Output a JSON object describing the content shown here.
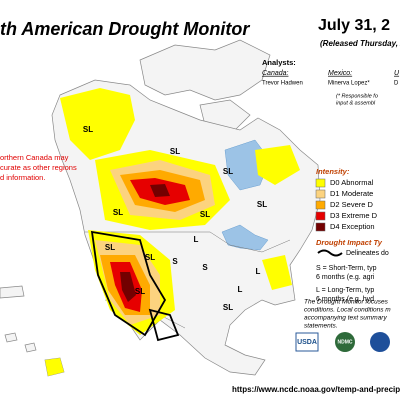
{
  "header": {
    "title": "th American Drought Monitor",
    "date": "July 31, 2",
    "released": "(Released Thursday, A"
  },
  "analysts": {
    "heading": "Analysts:",
    "entries": [
      {
        "region": "Canada:",
        "name": "Trevor Hadwen"
      },
      {
        "region": "Mexico:",
        "name": "Minerva Lopez*"
      },
      {
        "region": "U",
        "name": "D"
      }
    ],
    "note": [
      "(* Responsible fo",
      "input & assembl"
    ]
  },
  "warning": [
    "orthern Canada may",
    "curate as other regions",
    "d information."
  ],
  "legend": {
    "heading": "Intensity:",
    "items": [
      {
        "label": "D0 Abnormal",
        "color": "#ffff00"
      },
      {
        "label": "D1 Moderate",
        "color": "#fcd37f"
      },
      {
        "label": "D2 Severe D",
        "color": "#ffaa00"
      },
      {
        "label": "D3 Extreme D",
        "color": "#e60000"
      },
      {
        "label": "D4 Exception",
        "color": "#730000"
      }
    ]
  },
  "impact": {
    "heading": "Drought Impact Ty",
    "delineates": "Delineates do",
    "lines": [
      "S = Short-Term, typ",
      "6 months (e.g. agri",
      "L = Long-Term, typ",
      "6 months (e.g. hyd"
    ]
  },
  "footer": {
    "lines": [
      "The Drought Monitor focuses",
      "conditions. Local conditions m",
      "accompanying text summary",
      "statements."
    ],
    "url": "https://www.ncdc.noaa.gov/temp-and-precip/d"
  },
  "logos": [
    "USDA",
    "NDMC"
  ],
  "map_labels": [
    "SL",
    "SL",
    "SL",
    "SL",
    "SL",
    "SL",
    "L",
    "SL",
    "SL",
    "SL",
    "S",
    "L",
    "SL",
    "S",
    "L"
  ]
}
